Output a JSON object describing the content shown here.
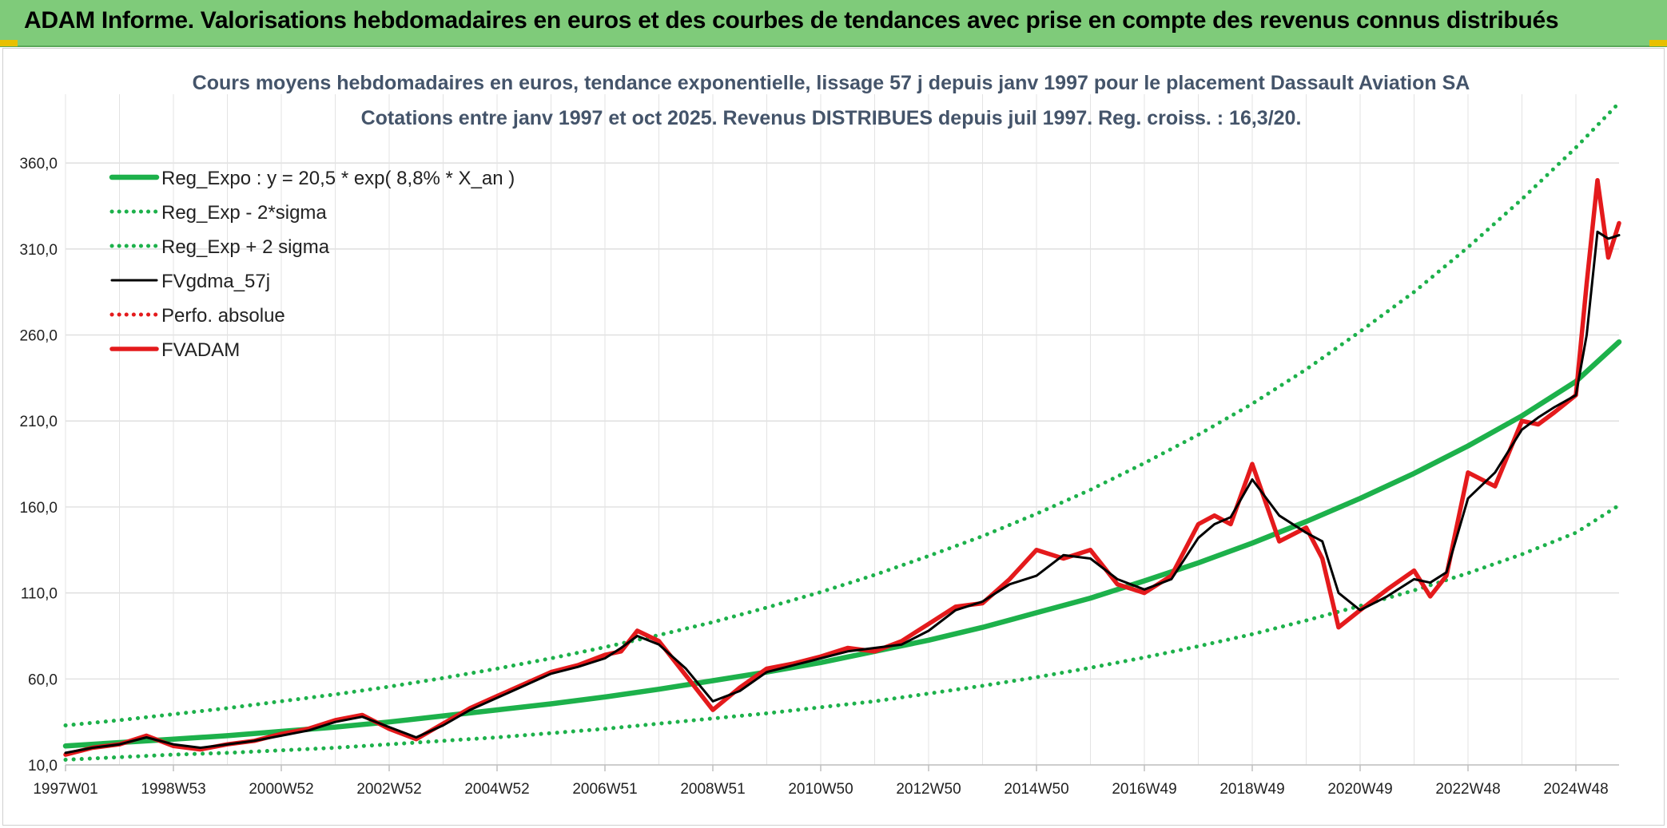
{
  "banner": {
    "title": "ADAM Informe. Valorisations hebdomadaires en euros et des courbes de tendances avec prise en compte des revenus connus distribués",
    "color": "#7fcb7a"
  },
  "chart_data": {
    "type": "line",
    "title_lines": [
      "Cours moyens hebdomadaires en euros, tendance exponentielle, lissage 57 j depuis janv 1997 pour le placement Dassault Aviation SA",
      "Cotations entre janv 1997 et oct 2025. Revenus DISTRIBUES depuis juil 1997. Reg. croiss. : 16,3/20."
    ],
    "xlabel": "",
    "ylabel": "",
    "x_tick_labels": [
      "1997W01",
      "1998W53",
      "2000W52",
      "2002W52",
      "2004W52",
      "2006W51",
      "2008W51",
      "2010W50",
      "2012W50",
      "2014W50",
      "2016W49",
      "2018W49",
      "2020W49",
      "2022W48",
      "2024W48"
    ],
    "x_tick_years": [
      1997.0,
      1999.0,
      2001.0,
      2003.0,
      2005.0,
      2007.0,
      2009.0,
      2011.0,
      2013.0,
      2015.0,
      2017.0,
      2019.0,
      2021.0,
      2023.0,
      2025.0
    ],
    "xlim": [
      1997.0,
      2025.8
    ],
    "ylim": [
      10,
      400
    ],
    "y_ticks": [
      10,
      60,
      110,
      160,
      210,
      260,
      310,
      360
    ],
    "y_tick_labels": [
      "10,0",
      "60,0",
      "110,0",
      "160,0",
      "210,0",
      "260,0",
      "310,0",
      "360,0"
    ],
    "grid": true,
    "legend_position": "top-left",
    "series": [
      {
        "name": "Reg_Expo : y = 20,5 * exp( 8,8% *  X_an )",
        "style": "solid-thick",
        "color": "#1db14b",
        "x": [
          1997,
          1998,
          1999,
          2000,
          2001,
          2002,
          2003,
          2004,
          2005,
          2006,
          2007,
          2008,
          2009,
          2010,
          2011,
          2012,
          2013,
          2014,
          2015,
          2016,
          2017,
          2018,
          2019,
          2020,
          2021,
          2022,
          2023,
          2024,
          2025,
          2025.8
        ],
        "values": [
          21,
          23,
          25,
          27,
          29.5,
          32,
          35,
          38.5,
          42,
          45.5,
          49.5,
          54,
          59,
          64,
          69.5,
          76,
          82.5,
          90,
          98.5,
          107,
          117,
          127.5,
          139,
          151.5,
          165,
          179.5,
          195.5,
          213,
          233,
          256
        ]
      },
      {
        "name": "Reg_Exp - 2*sigma",
        "style": "dotted",
        "color": "#1db14b",
        "x": [
          1997,
          1998,
          1999,
          2000,
          2001,
          2002,
          2003,
          2004,
          2005,
          2006,
          2007,
          2008,
          2009,
          2010,
          2011,
          2012,
          2013,
          2014,
          2015,
          2016,
          2017,
          2018,
          2019,
          2020,
          2021,
          2022,
          2023,
          2024,
          2025,
          2025.8
        ],
        "values": [
          13,
          14.5,
          16,
          17,
          18.5,
          20,
          22,
          24,
          26,
          28.5,
          31,
          34,
          37,
          40,
          43.5,
          47,
          51.5,
          56,
          61,
          66.5,
          72.5,
          79,
          86,
          94,
          102.5,
          111.5,
          121.5,
          132.5,
          145,
          161
        ]
      },
      {
        "name": "Reg_Exp + 2 sigma",
        "style": "dotted",
        "color": "#1db14b",
        "x": [
          1997,
          1998,
          1999,
          2000,
          2001,
          2002,
          2003,
          2004,
          2005,
          2006,
          2007,
          2008,
          2009,
          2010,
          2011,
          2012,
          2013,
          2014,
          2015,
          2016,
          2017,
          2018,
          2019,
          2020,
          2021,
          2022,
          2023,
          2024,
          2025,
          2025.8
        ],
        "values": [
          33,
          36,
          39.5,
          43,
          47,
          51,
          55.5,
          60.5,
          66,
          72,
          78.5,
          85.5,
          93,
          101.5,
          110.5,
          120.5,
          131.5,
          143,
          156,
          170,
          185.5,
          202,
          220,
          240,
          262,
          285,
          311,
          339,
          369,
          395
        ]
      },
      {
        "name": "FVgdma_57j",
        "style": "solid",
        "color": "#000000",
        "x": [
          1997.0,
          1997.5,
          1998.0,
          1998.5,
          1999.0,
          1999.5,
          2000.0,
          2000.5,
          2001.0,
          2001.5,
          2002.0,
          2002.5,
          2003.0,
          2003.5,
          2004.0,
          2004.5,
          2005.0,
          2005.5,
          2006.0,
          2006.5,
          2007.0,
          2007.3,
          2007.6,
          2008.0,
          2008.5,
          2009.0,
          2009.5,
          2010.0,
          2010.5,
          2011.0,
          2011.5,
          2012.0,
          2012.5,
          2013.0,
          2013.5,
          2014.0,
          2014.5,
          2015.0,
          2015.5,
          2016.0,
          2016.5,
          2017.0,
          2017.5,
          2018.0,
          2018.3,
          2018.6,
          2019.0,
          2019.5,
          2020.0,
          2020.3,
          2020.6,
          2021.0,
          2021.5,
          2022.0,
          2022.3,
          2022.6,
          2023.0,
          2023.5,
          2024.0,
          2024.3,
          2024.6,
          2025.0,
          2025.2,
          2025.4,
          2025.6,
          2025.8
        ],
        "values": [
          17,
          20,
          22,
          26,
          22,
          20,
          22,
          24,
          27,
          30,
          35,
          38,
          32,
          26,
          33,
          42,
          49,
          56,
          63,
          67,
          72,
          78,
          85,
          80,
          66,
          47,
          53,
          64,
          68,
          72,
          76,
          78,
          80,
          88,
          100,
          105,
          115,
          120,
          132,
          130,
          118,
          112,
          118,
          142,
          150,
          154,
          176,
          155,
          145,
          140,
          110,
          100,
          108,
          118,
          116,
          122,
          165,
          180,
          205,
          212,
          218,
          225,
          260,
          320,
          316,
          318
        ]
      },
      {
        "name": "Perfo. absolue",
        "style": "dotted",
        "color": "#e41a1c",
        "x": [],
        "values": []
      },
      {
        "name": "FVADAM",
        "style": "solid-thick",
        "color": "#e41a1c",
        "x": [
          1997.0,
          1997.5,
          1998.0,
          1998.5,
          1999.0,
          1999.5,
          2000.0,
          2000.5,
          2001.0,
          2001.5,
          2002.0,
          2002.5,
          2003.0,
          2003.5,
          2004.0,
          2004.5,
          2005.0,
          2005.5,
          2006.0,
          2006.5,
          2007.0,
          2007.3,
          2007.6,
          2008.0,
          2008.5,
          2009.0,
          2009.5,
          2010.0,
          2010.5,
          2011.0,
          2011.5,
          2012.0,
          2012.5,
          2013.0,
          2013.5,
          2014.0,
          2014.5,
          2015.0,
          2015.5,
          2016.0,
          2016.5,
          2017.0,
          2017.5,
          2018.0,
          2018.3,
          2018.6,
          2019.0,
          2019.5,
          2020.0,
          2020.3,
          2020.6,
          2021.0,
          2021.5,
          2022.0,
          2022.3,
          2022.6,
          2023.0,
          2023.5,
          2024.0,
          2024.3,
          2024.6,
          2025.0,
          2025.2,
          2025.4,
          2025.6,
          2025.8
        ],
        "values": [
          16,
          20,
          22,
          27,
          21,
          19,
          22,
          24,
          28,
          31,
          36,
          39,
          31,
          25,
          34,
          43,
          50,
          57,
          64,
          68,
          74,
          76,
          88,
          82,
          62,
          42,
          55,
          66,
          69,
          73,
          78,
          76,
          82,
          92,
          102,
          104,
          118,
          135,
          130,
          135,
          115,
          110,
          120,
          150,
          155,
          150,
          185,
          140,
          148,
          130,
          90,
          100,
          112,
          123,
          108,
          120,
          180,
          172,
          210,
          208,
          215,
          225,
          290,
          350,
          305,
          325
        ]
      }
    ]
  }
}
